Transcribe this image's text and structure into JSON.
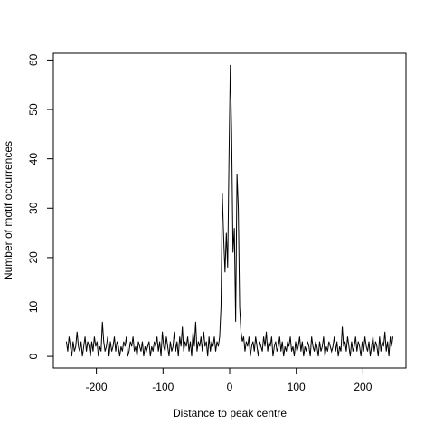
{
  "chart_data": {
    "type": "line",
    "x_label": "Distance to peak centre",
    "y_label": "Number of motif occurrences",
    "color": "#000000",
    "xlim": [
      -264.6,
      264.6
    ],
    "ylim": [
      -2.36,
      61.36
    ],
    "xticks": [
      -200,
      -100,
      0,
      100,
      200
    ],
    "yticks": [
      0,
      10,
      20,
      30,
      40,
      50,
      60
    ],
    "x": [
      -245,
      -243,
      -241,
      -239,
      -237,
      -235,
      -233,
      -231,
      -229,
      -227,
      -225,
      -223,
      -221,
      -219,
      -217,
      -215,
      -213,
      -211,
      -209,
      -207,
      -205,
      -203,
      -201,
      -199,
      -197,
      -195,
      -193,
      -191,
      -189,
      -187,
      -185,
      -183,
      -181,
      -179,
      -177,
      -175,
      -173,
      -171,
      -169,
      -167,
      -165,
      -163,
      -161,
      -159,
      -157,
      -155,
      -153,
      -151,
      -149,
      -147,
      -145,
      -143,
      -141,
      -139,
      -137,
      -135,
      -133,
      -131,
      -129,
      -127,
      -125,
      -123,
      -121,
      -119,
      -117,
      -115,
      -113,
      -111,
      -109,
      -107,
      -105,
      -103,
      -101,
      -99,
      -97,
      -95,
      -93,
      -91,
      -89,
      -87,
      -85,
      -83,
      -81,
      -79,
      -77,
      -75,
      -73,
      -71,
      -69,
      -67,
      -65,
      -63,
      -61,
      -59,
      -57,
      -55,
      -53,
      -51,
      -49,
      -47,
      -45,
      -43,
      -41,
      -39,
      -37,
      -35,
      -33,
      -31,
      -29,
      -27,
      -25,
      -23,
      -21,
      -19,
      -17,
      -15,
      -13,
      -11,
      -9,
      -7,
      -5,
      -3,
      -1,
      1,
      3,
      5,
      7,
      9,
      11,
      13,
      15,
      17,
      19,
      21,
      23,
      25,
      27,
      29,
      31,
      33,
      35,
      37,
      39,
      41,
      43,
      45,
      47,
      49,
      51,
      53,
      55,
      57,
      59,
      61,
      63,
      65,
      67,
      69,
      71,
      73,
      75,
      77,
      79,
      81,
      83,
      85,
      87,
      89,
      91,
      93,
      95,
      97,
      99,
      101,
      103,
      105,
      107,
      109,
      111,
      113,
      115,
      117,
      119,
      121,
      123,
      125,
      127,
      129,
      131,
      133,
      135,
      137,
      139,
      141,
      143,
      145,
      147,
      149,
      151,
      153,
      155,
      157,
      159,
      161,
      163,
      165,
      167,
      169,
      171,
      173,
      175,
      177,
      179,
      181,
      183,
      185,
      187,
      189,
      191,
      193,
      195,
      197,
      199,
      201,
      203,
      205,
      207,
      209,
      211,
      213,
      215,
      217,
      219,
      221,
      223,
      225,
      227,
      229,
      231,
      233,
      235,
      237,
      239,
      241,
      243,
      245
    ],
    "values": [
      3,
      1,
      4,
      2,
      0,
      3,
      1,
      2,
      5,
      2,
      1,
      3,
      0,
      2,
      4,
      1,
      3,
      2,
      0,
      3,
      1,
      4,
      2,
      3,
      0,
      2,
      1,
      7,
      3,
      1,
      2,
      4,
      0,
      3,
      1,
      2,
      4,
      1,
      3,
      2,
      0,
      2,
      1,
      3,
      2,
      4,
      0,
      1,
      3,
      2,
      4,
      1,
      2,
      0,
      3,
      2,
      1,
      3,
      0,
      2,
      1,
      2,
      3,
      0,
      2,
      1,
      3,
      2,
      4,
      1,
      3,
      0,
      5,
      2,
      1,
      4,
      2,
      0,
      3,
      1,
      2,
      5,
      1,
      3,
      0,
      4,
      2,
      6,
      1,
      3,
      2,
      4,
      1,
      3,
      0,
      5,
      2,
      7,
      1,
      3,
      2,
      4,
      1,
      5,
      2,
      3,
      0,
      4,
      1,
      3,
      2,
      4,
      1,
      3,
      2,
      4,
      10,
      33,
      24,
      17,
      25,
      18,
      40,
      59,
      45,
      21,
      26,
      7,
      37,
      30,
      10,
      5,
      3,
      4,
      1,
      3,
      2,
      4,
      0,
      2,
      3,
      1,
      4,
      2,
      0,
      3,
      2,
      1,
      4,
      2,
      5,
      1,
      3,
      2,
      4,
      0,
      2,
      3,
      1,
      2,
      4,
      1,
      3,
      0,
      2,
      1,
      3,
      2,
      4,
      1,
      2,
      0,
      3,
      1,
      2,
      4,
      1,
      3,
      0,
      2,
      1,
      3,
      2,
      0,
      4,
      2,
      1,
      3,
      2,
      0,
      3,
      1,
      2,
      4,
      0,
      2,
      1,
      3,
      2,
      1,
      2,
      4,
      1,
      3,
      0,
      2,
      1,
      6,
      2,
      3,
      1,
      4,
      2,
      0,
      3,
      1,
      2,
      4,
      1,
      3,
      2,
      0,
      3,
      1,
      4,
      2,
      1,
      3,
      0,
      2,
      4,
      1,
      3,
      2,
      0,
      4,
      1,
      3,
      2,
      5,
      1,
      3,
      0,
      4,
      2,
      4
    ]
  }
}
